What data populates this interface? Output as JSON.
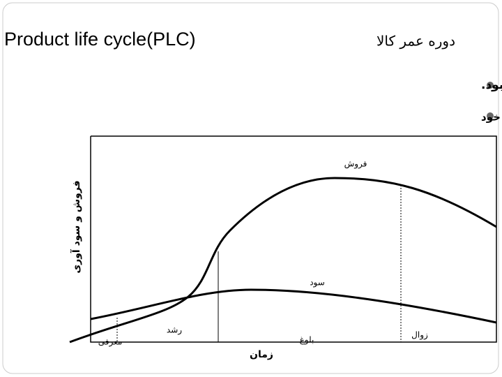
{
  "header": {
    "title": "Product life cycle(PLC)",
    "title_fa": "دوره عمر كالا"
  },
  "bullets": [
    "عمر هيچ كالايي ابدي نخواهد بود.",
    "توليدكنندگان به دنبال افزايش طول عمر و سودآوري كالاي خود"
  ],
  "diagram": {
    "y_axis_label": "فروش و سود آوری",
    "x_axis_label": "زمان",
    "curves": [
      "فروش",
      "سود"
    ],
    "stages": [
      "معرفی",
      "رشد",
      "بلوغ",
      "زوال"
    ]
  }
}
